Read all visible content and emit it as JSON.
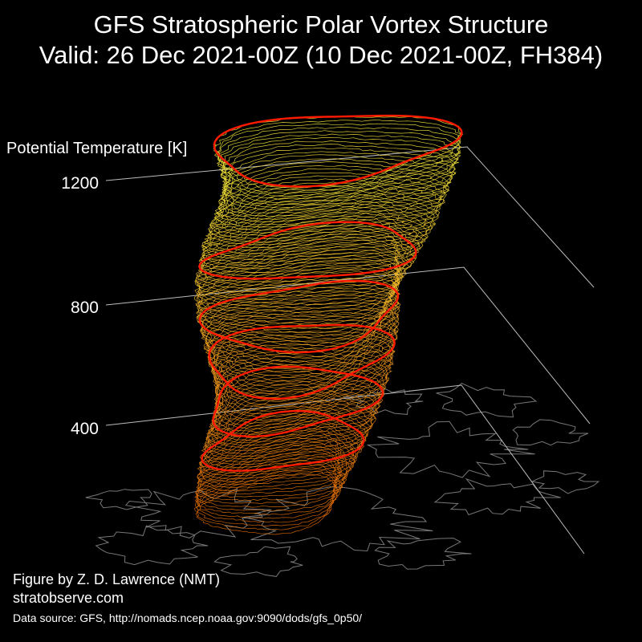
{
  "header": {
    "title": "GFS Stratospheric Polar Vortex Structure",
    "subtitle": "Valid: 26 Dec 2021-00Z  (10 Dec 2021-00Z, FH384)"
  },
  "credits": {
    "author": "Figure by Z. D. Lawrence (NMT)",
    "site": "stratobserve.com",
    "source": "Data source: GFS, http://nomads.ncep.noaa.gov:9090/dods/gfs_0p50/"
  },
  "colors": {
    "background": "#000000",
    "text": "#ffffff",
    "axis": "#bbbbbb",
    "coastline": "#777777",
    "highlight": "#ff1a00",
    "gradient_low": "#e06a00",
    "gradient_mid": "#f0a020",
    "gradient_high": "#f4ec3c"
  },
  "chart_data": {
    "type": "3d-isentropic-surface",
    "zlabel": "Potential Temperature [K]",
    "zticks": [
      400,
      800,
      1200
    ],
    "zlim": [
      350,
      1200
    ],
    "highlighted_levels_K": [
      500,
      600,
      700,
      800,
      950,
      1200
    ],
    "grid": true
  }
}
